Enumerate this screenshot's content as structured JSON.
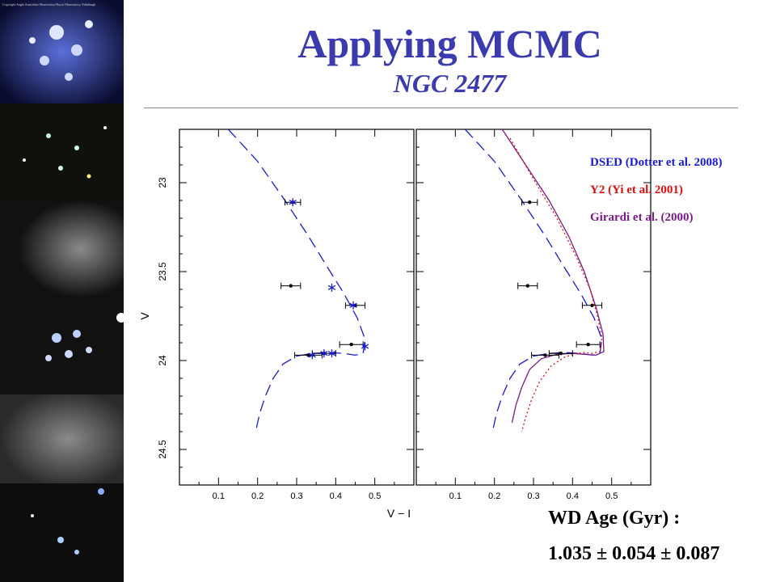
{
  "slide": {
    "title": "Applying MCMC",
    "subtitle": "NGC 2477",
    "photo_credit": "Copyright Anglo Australian Observatory/Royal Observatory, Edinburgh",
    "age_label": "WD Age (Gyr) :",
    "age_value": "1.035 ± 0.054 ± 0.087"
  },
  "legend": [
    {
      "label": "DSED (Dotter et al. 2008)",
      "color": "#1a1ad6"
    },
    {
      "label": "Y2 (Yi et al. 2001)",
      "color": "#e01010"
    },
    {
      "label": "Girardi et al. (2000)",
      "color": "#7a1a8a"
    }
  ],
  "chart_data": {
    "type": "scatter",
    "xlabel": "V − I",
    "ylabel": "V",
    "xlim": [
      0,
      0.6
    ],
    "ylim": [
      24.7,
      22.7
    ],
    "y_inverted": true,
    "xticks": [
      "0.1",
      "0.2",
      "0.3",
      "0.4",
      "0.5"
    ],
    "yticks": [
      "23",
      "23.5",
      "24",
      "24.5"
    ],
    "observed": [
      {
        "x": 0.29,
        "y": 23.11,
        "xerr": 0.02
      },
      {
        "x": 0.285,
        "y": 23.58,
        "xerr": 0.025
      },
      {
        "x": 0.45,
        "y": 23.69,
        "xerr": 0.025
      },
      {
        "x": 0.44,
        "y": 23.91,
        "xerr": 0.03
      },
      {
        "x": 0.37,
        "y": 23.96,
        "xerr": 0.03
      },
      {
        "x": 0.33,
        "y": 23.97,
        "xerr": 0.035
      }
    ],
    "model_points": [
      {
        "x": 0.29,
        "y": 23.11
      },
      {
        "x": 0.39,
        "y": 23.59
      },
      {
        "x": 0.445,
        "y": 23.69
      },
      {
        "x": 0.475,
        "y": 23.92
      },
      {
        "x": 0.39,
        "y": 23.96
      },
      {
        "x": 0.37,
        "y": 23.96
      },
      {
        "x": 0.34,
        "y": 23.97
      }
    ],
    "series": [
      {
        "model": "DSED",
        "panel": "both",
        "color": "#1a1ad6",
        "dash": "14 7",
        "x": [
          0.125,
          0.2,
          0.27,
          0.33,
          0.38,
          0.42,
          0.455,
          0.475,
          0.47,
          0.45,
          0.42,
          0.38,
          0.34,
          0.3,
          0.265,
          0.24,
          0.22,
          0.205,
          0.195
        ],
        "y": [
          22.7,
          22.88,
          23.1,
          23.3,
          23.48,
          23.62,
          23.76,
          23.88,
          23.96,
          23.97,
          23.96,
          23.955,
          23.96,
          23.975,
          24.02,
          24.1,
          24.2,
          24.3,
          24.4
        ]
      },
      {
        "model": "Girardi",
        "panel": "right",
        "color": "#7a1a8a",
        "dash": "",
        "x": [
          0.22,
          0.28,
          0.34,
          0.39,
          0.43,
          0.46,
          0.478,
          0.48,
          0.46,
          0.43,
          0.4,
          0.36,
          0.32,
          0.29,
          0.27,
          0.255,
          0.245
        ],
        "y": [
          22.7,
          22.9,
          23.1,
          23.3,
          23.5,
          23.7,
          23.85,
          23.95,
          23.97,
          23.965,
          23.96,
          23.965,
          23.99,
          24.05,
          24.15,
          24.25,
          24.35
        ]
      },
      {
        "model": "Y2",
        "panel": "right",
        "color": "#e01010",
        "dash": "2 3",
        "x": [
          0.24,
          0.3,
          0.36,
          0.41,
          0.445,
          0.465,
          0.475,
          0.47,
          0.45,
          0.43,
          0.41,
          0.38,
          0.345,
          0.315,
          0.295,
          0.28,
          0.27
        ],
        "y": [
          22.75,
          22.98,
          23.2,
          23.42,
          23.6,
          23.76,
          23.87,
          23.95,
          23.96,
          23.955,
          23.96,
          23.98,
          24.03,
          24.12,
          24.22,
          24.32,
          24.4
        ]
      }
    ]
  }
}
